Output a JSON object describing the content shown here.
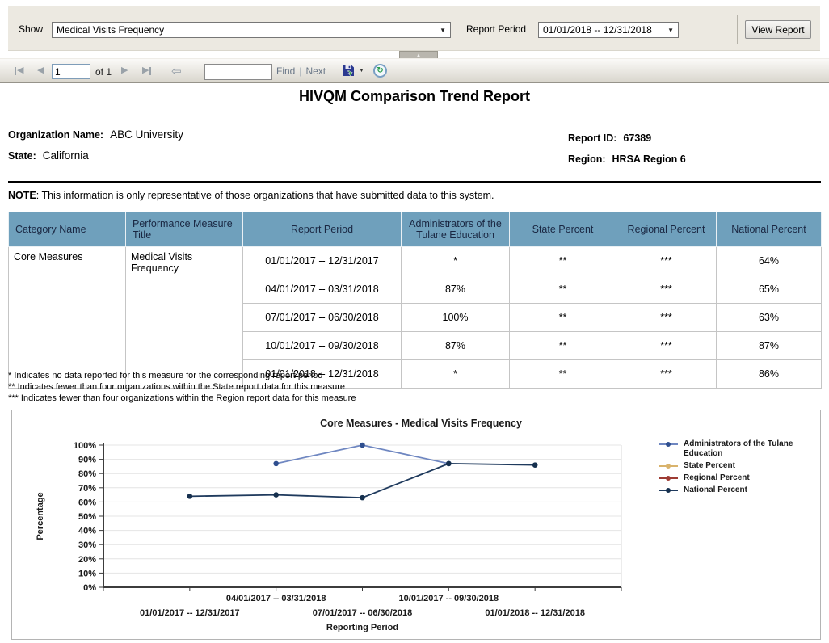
{
  "param_bar": {
    "show_label": "Show",
    "show_value": "Medical Visits Frequency",
    "report_period_label": "Report Period",
    "report_period_value": "01/01/2018 --  12/31/2018",
    "view_report_label": "View Report",
    "dropdown_arrow_glyph": "▼"
  },
  "toolbar": {
    "page_number": "1",
    "of_label": "of 1",
    "prev_glyph": "◀",
    "next_glyph": "▶",
    "back_glyph": "⇦",
    "find_value": "",
    "find_label": "Find",
    "separator": "|",
    "next_label": "Next",
    "export_caret_glyph": "▼",
    "refresh_glyph": "↻",
    "collapse_glyph": "▲"
  },
  "report": {
    "title": "HIVQM Comparison Trend Report",
    "org_label": "Organization Name:",
    "org_value": "ABC University",
    "state_label": "State:",
    "state_value": "California",
    "report_id_label": "Report ID:",
    "report_id_value": "67389",
    "region_label": "Region:",
    "region_value": "HRSA Region 6",
    "note_label": "NOTE",
    "note_text": ": This information is only representative of those organizations that have submitted data to this system."
  },
  "table": {
    "columns": [
      "Category Name",
      "Performance Measure Title",
      "Report Period",
      "Administrators of the Tulane Education",
      "State Percent",
      "Regional Percent",
      "National Percent"
    ],
    "category": "Core Measures",
    "measure": "Medical Visits Frequency",
    "rows": [
      [
        "01/01/2017 --  12/31/2017",
        "*",
        "**",
        "***",
        "64%"
      ],
      [
        "04/01/2017 --  03/31/2018",
        "87%",
        "**",
        "***",
        "65%"
      ],
      [
        "07/01/2017 --  06/30/2018",
        "100%",
        "**",
        "***",
        "63%"
      ],
      [
        "10/01/2017 --  09/30/2018",
        "87%",
        "**",
        "***",
        "87%"
      ],
      [
        "01/01/2018 --  12/31/2018",
        "*",
        "**",
        "***",
        "86%"
      ]
    ]
  },
  "footnotes": [
    "* Indicates no data reported for this measure for the corresponding report period",
    "** Indicates fewer than four organizations within the State report data for this measure",
    "*** Indicates fewer than four organizations within the Region report data for this measure"
  ],
  "chart_data": {
    "type": "line",
    "title": "Core Measures - Medical Visits Frequency",
    "xlabel": "Reporting Period",
    "ylabel": "Percentage",
    "ylim": [
      0,
      100
    ],
    "ytick_step": 10,
    "grid": true,
    "legend_position": "right",
    "categories": [
      "01/01/2017 -- 12/31/2017",
      "04/01/2017 -- 03/31/2018",
      "07/01/2017 -- 06/30/2018",
      "10/01/2017 -- 09/30/2018",
      "01/01/2018 -- 12/31/2018"
    ],
    "series": [
      {
        "name": "Administrators of the Tulane Education",
        "color": "#6f87c1",
        "marker": "#2f4f8f",
        "values": [
          null,
          87,
          100,
          87,
          null
        ]
      },
      {
        "name": "State Percent",
        "color": "#d9b36c",
        "marker": "#d9b36c",
        "values": [
          null,
          null,
          null,
          null,
          null
        ]
      },
      {
        "name": "Regional Percent",
        "color": "#9e3b33",
        "marker": "#9e3b33",
        "values": [
          null,
          null,
          null,
          null,
          null
        ]
      },
      {
        "name": "National Percent",
        "color": "#1f3a5d",
        "marker": "#16304e",
        "values": [
          64,
          65,
          63,
          87,
          86
        ]
      }
    ]
  },
  "colors": {
    "table_header_bg": "#6fa0bc",
    "param_panel_bg": "#ece9e1",
    "axis": "#3c3c3c",
    "gridline": "#e4e4e4"
  }
}
